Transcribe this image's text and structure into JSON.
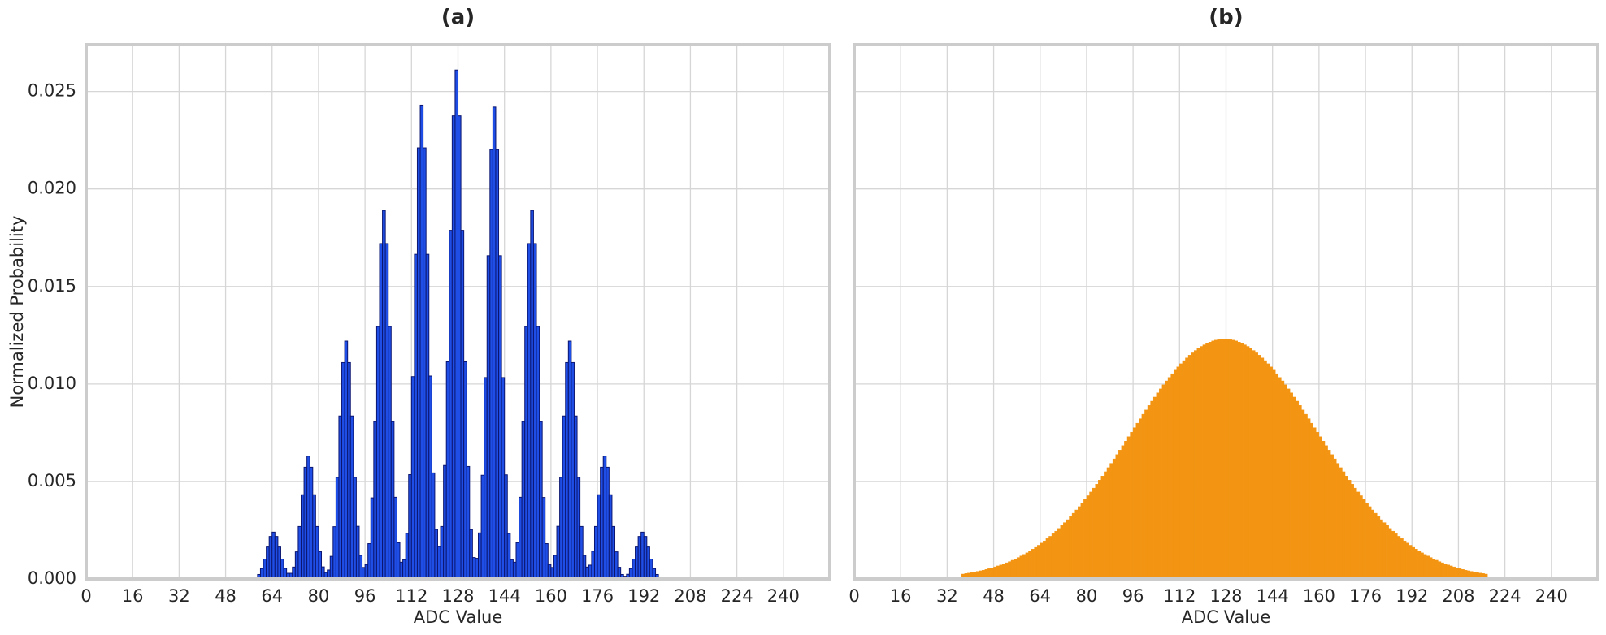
{
  "chart_data": [
    {
      "type": "histogram",
      "title": "(a)",
      "xlabel": "ADC Value",
      "ylabel": "Normalized Probability",
      "bins": [
        58,
        59,
        60,
        61,
        62,
        63,
        64,
        65,
        66,
        67,
        68,
        69,
        70,
        71,
        72,
        73,
        74,
        75,
        76,
        77,
        78,
        79,
        80,
        81,
        82,
        83,
        84,
        85,
        86,
        87,
        88,
        89,
        90,
        91,
        92,
        93,
        94,
        95,
        96,
        97,
        98,
        99,
        100,
        101,
        102,
        103,
        104,
        105,
        106,
        107,
        108,
        109,
        110,
        111,
        112,
        113,
        114,
        115,
        116,
        117,
        118,
        119,
        120,
        121,
        122,
        123,
        124,
        125,
        126,
        127,
        128,
        129,
        130,
        131,
        132,
        133,
        134,
        135,
        136,
        137,
        138,
        139,
        140,
        141,
        142,
        143,
        144,
        145,
        146,
        147,
        148,
        149,
        150,
        151,
        152,
        153,
        154,
        155,
        156,
        157,
        158,
        159,
        160,
        161,
        162,
        163,
        164,
        165,
        166,
        167,
        168,
        169,
        170,
        171,
        172,
        173,
        174,
        175,
        176,
        177,
        178,
        179,
        180,
        181,
        182,
        183,
        184,
        185,
        186,
        187,
        188,
        189,
        190,
        191,
        192,
        193,
        194,
        195,
        196,
        197,
        198
      ],
      "values": [
        8e-05,
        0.00023,
        0.00053,
        0.00102,
        0.00164,
        0.00218,
        0.0024,
        0.00218,
        0.00164,
        0.00102,
        0.00054,
        0.00029,
        0.00029,
        0.00061,
        0.00139,
        0.00269,
        0.00432,
        0.00573,
        0.0063,
        0.00573,
        0.00432,
        0.00269,
        0.0014,
        0.00062,
        0.00033,
        0.00046,
        0.00116,
        0.00268,
        0.00521,
        0.00836,
        0.0111,
        0.0122,
        0.0111,
        0.00836,
        0.00521,
        0.0027,
        0.00121,
        0.00059,
        0.00074,
        0.00181,
        0.00416,
        0.00807,
        0.01295,
        0.0172,
        0.0189,
        0.0172,
        0.01295,
        0.00807,
        0.00419,
        0.00186,
        0.00086,
        0.00099,
        0.00234,
        0.00535,
        0.01038,
        0.01665,
        0.02211,
        0.0243,
        0.02211,
        0.01665,
        0.01041,
        0.00544,
        0.00254,
        0.00166,
        0.00269,
        0.00582,
        0.01114,
        0.01788,
        0.02375,
        0.0261,
        0.02375,
        0.01788,
        0.01114,
        0.00577,
        0.00253,
        0.0011,
        0.00106,
        0.00236,
        0.00532,
        0.01033,
        0.01658,
        0.02202,
        0.0242,
        0.02202,
        0.01658,
        0.01033,
        0.00534,
        0.00233,
        0.00099,
        0.00086,
        0.00186,
        0.00419,
        0.00807,
        0.01295,
        0.0172,
        0.0189,
        0.0172,
        0.01295,
        0.00807,
        0.00418,
        0.00181,
        0.00074,
        0.00059,
        0.00121,
        0.0027,
        0.00521,
        0.00836,
        0.0111,
        0.0122,
        0.0111,
        0.00836,
        0.00521,
        0.00269,
        0.00121,
        0.00061,
        0.00071,
        0.00142,
        0.00269,
        0.00432,
        0.00573,
        0.0063,
        0.00573,
        0.00432,
        0.00269,
        0.00139,
        0.0006,
        0.00023,
        0.00014,
        0.00024,
        0.00053,
        0.00102,
        0.00164,
        0.00218,
        0.0024,
        0.00218,
        0.00164,
        0.00102,
        0.00053,
        0.00023,
        8e-05
      ],
      "color": "#1f4ee6",
      "edgecolor": "#0b1670",
      "xlim": [
        0,
        256
      ],
      "ylim": [
        0,
        0.0274
      ],
      "xticks": [
        0,
        16,
        32,
        48,
        64,
        80,
        96,
        112,
        128,
        144,
        160,
        176,
        192,
        208,
        224,
        240
      ],
      "yticks": [
        {
          "value": 0,
          "label": "0.000"
        },
        0.005,
        {
          "value": 0.01,
          "label": "0.010"
        },
        0.015,
        {
          "value": 0.02,
          "label": "0.020"
        },
        0.025
      ],
      "grid": true
    },
    {
      "type": "histogram",
      "title": "(b)",
      "xlabel": "ADC Value",
      "bins": [
        37,
        38,
        39,
        40,
        41,
        42,
        43,
        44,
        45,
        46,
        47,
        48,
        49,
        50,
        51,
        52,
        53,
        54,
        55,
        56,
        57,
        58,
        59,
        60,
        61,
        62,
        63,
        64,
        65,
        66,
        67,
        68,
        69,
        70,
        71,
        72,
        73,
        74,
        75,
        76,
        77,
        78,
        79,
        80,
        81,
        82,
        83,
        84,
        85,
        86,
        87,
        88,
        89,
        90,
        91,
        92,
        93,
        94,
        95,
        96,
        97,
        98,
        99,
        100,
        101,
        102,
        103,
        104,
        105,
        106,
        107,
        108,
        109,
        110,
        111,
        112,
        113,
        114,
        115,
        116,
        117,
        118,
        119,
        120,
        121,
        122,
        123,
        124,
        125,
        126,
        127,
        128,
        129,
        130,
        131,
        132,
        133,
        134,
        135,
        136,
        137,
        138,
        139,
        140,
        141,
        142,
        143,
        144,
        145,
        146,
        147,
        148,
        149,
        150,
        151,
        152,
        153,
        154,
        155,
        156,
        157,
        158,
        159,
        160,
        161,
        162,
        163,
        164,
        165,
        166,
        167,
        168,
        169,
        170,
        171,
        172,
        173,
        174,
        175,
        176,
        177,
        178,
        179,
        180,
        181,
        182,
        183,
        184,
        185,
        186,
        187,
        188,
        189,
        190,
        191,
        192,
        193,
        194,
        195,
        196,
        197,
        198,
        199,
        200,
        201,
        202,
        203,
        204,
        205,
        206,
        207,
        208,
        209,
        210,
        211,
        212,
        213,
        214,
        215,
        216,
        217,
        218
      ],
      "values": [
        0.00025,
        0.00028,
        0.0003,
        0.00033,
        0.00036,
        0.00039,
        0.00042,
        0.00045,
        0.00049,
        0.00053,
        0.00057,
        0.00062,
        0.00067,
        0.00072,
        0.00077,
        0.00083,
        0.00089,
        0.00096,
        0.00103,
        0.0011,
        0.00118,
        0.00126,
        0.00134,
        0.00143,
        0.00153,
        0.00162,
        0.00173,
        0.00184,
        0.00195,
        0.00207,
        0.00219,
        0.00232,
        0.00245,
        0.00259,
        0.00274,
        0.00289,
        0.00304,
        0.0032,
        0.00337,
        0.00354,
        0.00371,
        0.00389,
        0.00408,
        0.00427,
        0.00446,
        0.00466,
        0.00486,
        0.00507,
        0.00528,
        0.0055,
        0.00571,
        0.00593,
        0.00616,
        0.00638,
        0.00661,
        0.00684,
        0.00707,
        0.0073,
        0.00753,
        0.00776,
        0.00799,
        0.00822,
        0.00845,
        0.00867,
        0.0089,
        0.00912,
        0.00933,
        0.00955,
        0.00975,
        0.00996,
        0.01016,
        0.01034,
        0.01053,
        0.01071,
        0.01088,
        0.01104,
        0.0112,
        0.01134,
        0.01148,
        0.0116,
        0.01172,
        0.01183,
        0.01193,
        0.01201,
        0.01209,
        0.01215,
        0.01221,
        0.01225,
        0.01228,
        0.0123,
        0.0123,
        0.0123,
        0.01228,
        0.01225,
        0.01221,
        0.01215,
        0.01209,
        0.01201,
        0.01193,
        0.01183,
        0.01172,
        0.0116,
        0.01148,
        0.01134,
        0.0112,
        0.01104,
        0.01088,
        0.01071,
        0.01053,
        0.01034,
        0.01016,
        0.00996,
        0.00975,
        0.00955,
        0.00933,
        0.00912,
        0.0089,
        0.00867,
        0.00845,
        0.00822,
        0.00799,
        0.00776,
        0.00753,
        0.0073,
        0.00707,
        0.00684,
        0.00661,
        0.00638,
        0.00616,
        0.00593,
        0.00571,
        0.0055,
        0.00528,
        0.00507,
        0.00486,
        0.00466,
        0.00446,
        0.00427,
        0.00408,
        0.00389,
        0.00371,
        0.00354,
        0.00337,
        0.0032,
        0.00304,
        0.00289,
        0.00274,
        0.00259,
        0.00245,
        0.00232,
        0.00219,
        0.00207,
        0.00195,
        0.00184,
        0.00173,
        0.00162,
        0.00153,
        0.00143,
        0.00134,
        0.00126,
        0.00118,
        0.0011,
        0.00103,
        0.00096,
        0.00089,
        0.00083,
        0.00077,
        0.00072,
        0.00067,
        0.00062,
        0.00057,
        0.00053,
        0.00049,
        0.00045,
        0.00042,
        0.00039,
        0.00036,
        0.00033,
        0.0003,
        0.00028,
        0.00025
      ],
      "color": "#f39412",
      "xlim": [
        0,
        256
      ],
      "xticks": [
        0,
        16,
        32,
        48,
        64,
        80,
        96,
        112,
        128,
        144,
        160,
        176,
        192,
        208,
        224,
        240
      ],
      "grid": true
    }
  ]
}
